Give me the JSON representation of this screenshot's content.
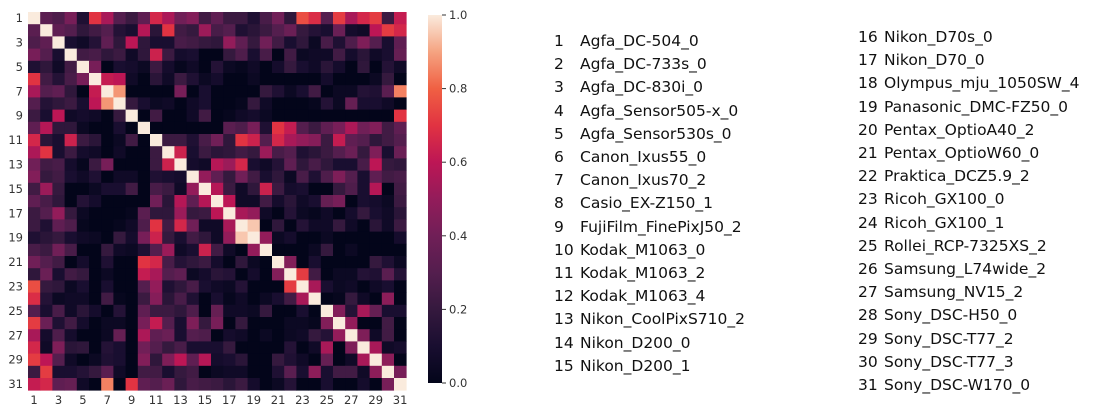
{
  "chart_data": {
    "type": "heatmap",
    "title": "",
    "xlabel": "",
    "ylabel": "",
    "x_tick_labels": [
      "1",
      "3",
      "5",
      "7",
      "9",
      "11",
      "13",
      "15",
      "17",
      "19",
      "21",
      "23",
      "25",
      "27",
      "29",
      "31"
    ],
    "y_tick_labels": [
      "1",
      "3",
      "5",
      "7",
      "9",
      "11",
      "13",
      "15",
      "17",
      "19",
      "21",
      "23",
      "25",
      "27",
      "29",
      "31"
    ],
    "colorbar": {
      "ticks": [
        "0.0",
        "0.2",
        "0.4",
        "0.6",
        "0.8",
        "1.0"
      ],
      "range": [
        0,
        1
      ]
    },
    "diagonal": 1.0,
    "offdiag_values": [
      0.32,
      0.28,
      0.42,
      0.12,
      0.7,
      0.62,
      0.3,
      0.22,
      0.34,
      0.42,
      0.56,
      0.4,
      0.45,
      0.24,
      0.34,
      0.22,
      0.22,
      0.12,
      0.26,
      0.4,
      0.18,
      0.7,
      0.64,
      0.3,
      0.66,
      0.55,
      0.5,
      0.46,
      0.22,
      0.62,
      0.34,
      0.3,
      0.18,
      0.24,
      0.3,
      0.14,
      0.1,
      0.22,
      0.16,
      0.18,
      0.24,
      0.2,
      0.52,
      0.26,
      0.3,
      0.12,
      0.16,
      0.22,
      0.3,
      0.38,
      0.2,
      0.14,
      0.1,
      0.38,
      0.08,
      0.06,
      0.58,
      0.52,
      0.66,
      0.1,
      0.06,
      0.14,
      0.34,
      0.18,
      0.26,
      0.18,
      0.1,
      0.1,
      0.26,
      0.24,
      0.2,
      0.18,
      0.5,
      0.34,
      0.2,
      0.4,
      0.24,
      0.1,
      0.18,
      0.04,
      0.26,
      0.12,
      0.28,
      0.44,
      0.3,
      0.1,
      0.34,
      0.24,
      0.26,
      0.18,
      0.22,
      0.06,
      0.18,
      0.64,
      0.22,
      0.08,
      0.1,
      0.0,
      0.0,
      0.2,
      0.28,
      0.1,
      0.26,
      0.0,
      0.24,
      0.04,
      0.06,
      0.06,
      0.24,
      0.08,
      0.16,
      0.06,
      0.1,
      0.36,
      0.42,
      0.0,
      0.1,
      0.08,
      0.04,
      0.22,
      0.08,
      0.02,
      0.06,
      0.0,
      0.14,
      0.04,
      0.02,
      0.06,
      0.0,
      0.08,
      0.2,
      0.1,
      0.06,
      0.16,
      0.08,
      0.0,
      0.18,
      0.0,
      0.14,
      0.06,
      0.06,
      0.2,
      0.06,
      0.0,
      0.16,
      0.06,
      0.22,
      0.12,
      0.04,
      0.08,
      0.0,
      0.0,
      0.04,
      0.0,
      0.0,
      0.0,
      0.0,
      0.0,
      0.08,
      0.0,
      0.0,
      0.0,
      0.04,
      0.2,
      0.0,
      0.04,
      0.0,
      0.0,
      0.0,
      0.0,
      0.08,
      0.0,
      0.1,
      0.0,
      0.0,
      0.0,
      0.0,
      0.2,
      0.12,
      0.04,
      0.1,
      0.24,
      0.0,
      0.04,
      0.04,
      0.14,
      0.12,
      0.32,
      0.14,
      0.2,
      0.1,
      0.04,
      0.06,
      0.0,
      0.06,
      0.1,
      0.0,
      0.0,
      0.02,
      0.2,
      0.06,
      0.0,
      0.0,
      0.0,
      0.02,
      0.14,
      0.04,
      0.36,
      0.1,
      0.1,
      0.06,
      0.0,
      0.0,
      0.24,
      0.0,
      0.0,
      0.06,
      0.24,
      0.0,
      0.02,
      0.06,
      0.08,
      0.04,
      0.0,
      0.0,
      0.0,
      0.0,
      0.0,
      0.0,
      0.0,
      0.0,
      0.0,
      0.0,
      0.0,
      0.0,
      0.0,
      0.0,
      0.0,
      0.0,
      0.0
    ],
    "strong_pairs": [
      [
        1,
        7,
        0.55
      ],
      [
        6,
        7,
        0.62
      ],
      [
        7,
        8,
        0.88
      ],
      [
        8,
        6,
        0.6
      ],
      [
        12,
        13,
        0.64
      ],
      [
        15,
        16,
        0.58
      ],
      [
        16,
        17,
        0.6
      ],
      [
        17,
        18,
        0.55
      ],
      [
        17,
        19,
        0.5
      ],
      [
        18,
        19,
        0.95
      ],
      [
        19,
        20,
        0.5
      ],
      [
        21,
        22,
        0.45
      ],
      [
        22,
        23,
        0.72
      ],
      [
        23,
        24,
        0.55
      ],
      [
        25,
        26,
        0.45
      ],
      [
        26,
        27,
        0.5
      ],
      [
        27,
        28,
        0.44
      ],
      [
        28,
        29,
        0.55
      ],
      [
        29,
        30,
        0.48
      ],
      [
        30,
        31,
        0.42
      ],
      [
        13,
        29,
        0.6
      ],
      [
        15,
        29,
        0.58
      ],
      [
        12,
        29,
        0.44
      ],
      [
        2,
        29,
        0.6
      ],
      [
        1,
        23,
        0.76
      ],
      [
        1,
        24,
        0.68
      ],
      [
        1,
        26,
        0.72
      ],
      [
        2,
        30,
        0.72
      ],
      [
        1,
        28,
        0.66
      ],
      [
        1,
        29,
        0.72
      ],
      [
        25,
        28,
        0.55
      ],
      [
        24,
        30,
        0.48
      ],
      [
        9,
        31,
        0.7
      ],
      [
        7,
        31,
        0.85
      ],
      [
        13,
        7,
        0.42
      ],
      [
        3,
        9,
        0.6
      ],
      [
        2,
        10,
        0.58
      ],
      [
        1,
        11,
        0.66
      ],
      [
        2,
        12,
        0.7
      ]
    ]
  },
  "legend": {
    "column_1": [
      {
        "num": "1",
        "name": "Agfa_DC-504_0"
      },
      {
        "num": "2",
        "name": "Agfa_DC-733s_0"
      },
      {
        "num": "3",
        "name": "Agfa_DC-830i_0"
      },
      {
        "num": "4",
        "name": "Agfa_Sensor505-x_0"
      },
      {
        "num": "5",
        "name": "Agfa_Sensor530s_0"
      },
      {
        "num": "6",
        "name": "Canon_Ixus55_0"
      },
      {
        "num": "7",
        "name": "Canon_Ixus70_2"
      },
      {
        "num": "8",
        "name": "Casio_EX-Z150_1"
      },
      {
        "num": "9",
        "name": "FujiFilm_FinePixJ50_2"
      },
      {
        "num": "10",
        "name": "Kodak_M1063_0"
      },
      {
        "num": "11",
        "name": "Kodak_M1063_2"
      },
      {
        "num": "12",
        "name": "Kodak_M1063_4"
      },
      {
        "num": "13",
        "name": "Nikon_CoolPixS710_2"
      },
      {
        "num": "14",
        "name": "Nikon_D200_0"
      },
      {
        "num": "15",
        "name": "Nikon_D200_1"
      }
    ],
    "column_2": [
      {
        "num": "16",
        "name": "Nikon_D70s_0"
      },
      {
        "num": "17",
        "name": "Nikon_D70_0"
      },
      {
        "num": "18",
        "name": "Olympus_mju_1050SW_4"
      },
      {
        "num": "19",
        "name": "Panasonic_DMC-FZ50_0"
      },
      {
        "num": "20",
        "name": "Pentax_OptioA40_2"
      },
      {
        "num": "21",
        "name": "Pentax_OptioW60_0"
      },
      {
        "num": "22",
        "name": "Praktica_DCZ5.9_2"
      },
      {
        "num": "23",
        "name": "Ricoh_GX100_0"
      },
      {
        "num": "24",
        "name": "Ricoh_GX100_1"
      },
      {
        "num": "25",
        "name": "Rollei_RCP-7325XS_2"
      },
      {
        "num": "26",
        "name": "Samsung_L74wide_2"
      },
      {
        "num": "27",
        "name": "Samsung_NV15_2"
      },
      {
        "num": "28",
        "name": "Sony_DSC-H50_0"
      },
      {
        "num": "29",
        "name": "Sony_DSC-T77_2"
      },
      {
        "num": "30",
        "name": "Sony_DSC-T77_3"
      },
      {
        "num": "31",
        "name": "Sony_DSC-W170_0"
      }
    ]
  }
}
